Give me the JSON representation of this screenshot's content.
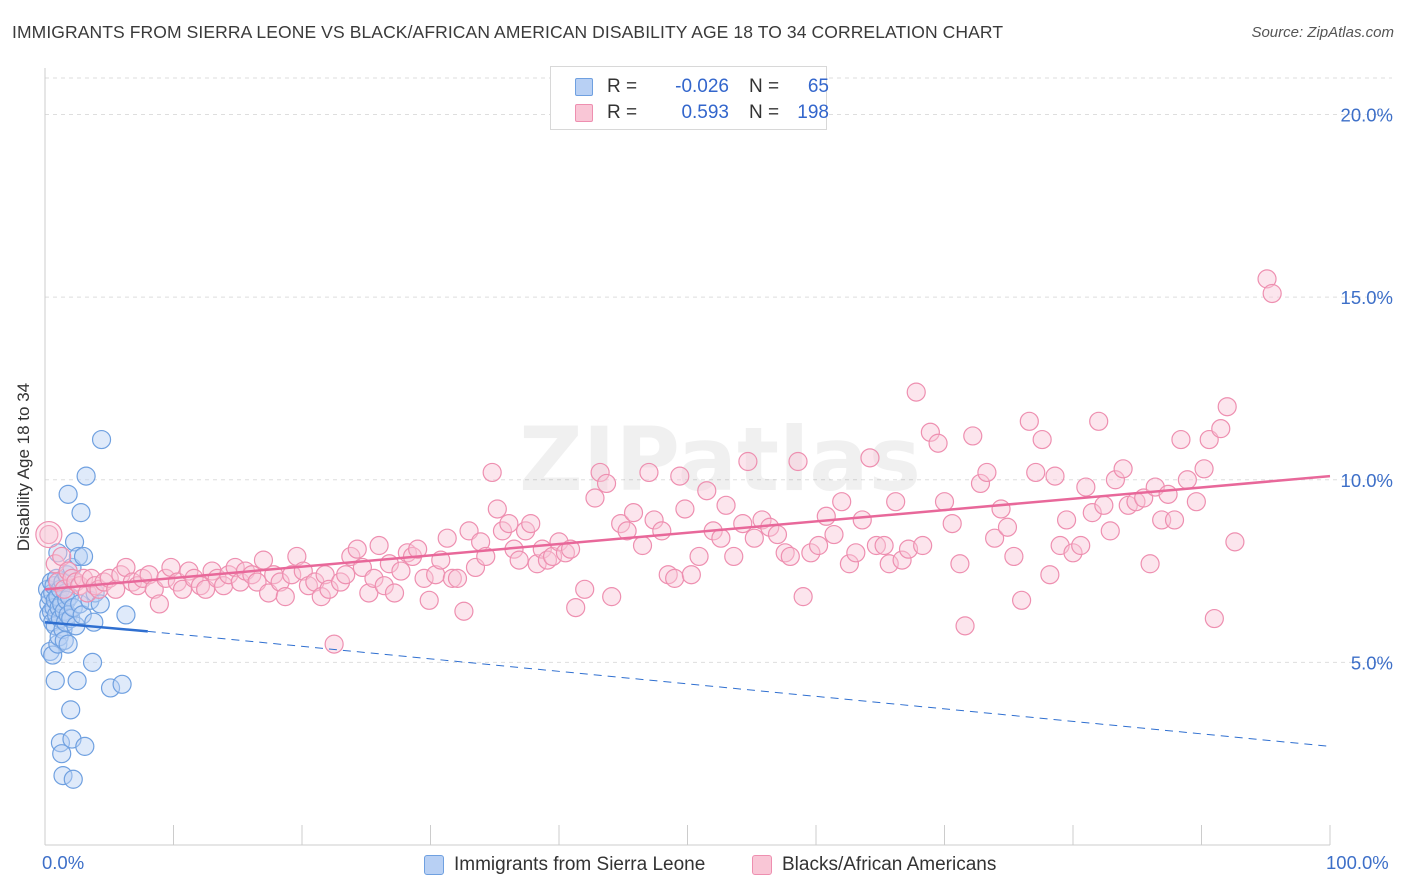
{
  "title": "IMMIGRANTS FROM SIERRA LEONE VS BLACK/AFRICAN AMERICAN DISABILITY AGE 18 TO 34 CORRELATION CHART",
  "source": "Source: ZipAtlas.com",
  "watermark": "ZIPatlas",
  "legend": {
    "rows": [
      {
        "r_label": "R =",
        "r_value": "-0.026",
        "n_label": "N =",
        "n_value": "65"
      },
      {
        "r_label": "R =",
        "r_value": "0.593",
        "n_label": "N =",
        "n_value": "198"
      }
    ]
  },
  "bottom_legend": [
    "Immigrants from Sierra Leone",
    "Blacks/African Americans"
  ],
  "chart_data": {
    "type": "scatter",
    "ylabel": "Disability Age 18 to 34",
    "xlim": [
      0,
      100
    ],
    "ylim": [
      0,
      21
    ],
    "x_tick_labels": [
      "0.0%",
      "100.0%"
    ],
    "y_ticks": [
      5,
      10,
      15,
      20
    ],
    "y_tick_labels": [
      "5.0%",
      "10.0%",
      "15.0%",
      "20.0%"
    ],
    "grid": "horizontal dashed",
    "colors": {
      "blue": "#6fa0e0",
      "pink": "#ee8fb0",
      "blue_line": "#2f6fd0",
      "pink_line": "#e8689a",
      "tick_text": "#3d6fc8"
    },
    "series": [
      {
        "name": "Immigrants from Sierra Leone",
        "color": "#6fa0e0",
        "trend": {
          "x": [
            0,
            8
          ],
          "y": [
            6.1,
            5.85
          ],
          "dashed_x": [
            8,
            100
          ],
          "dashed_y": [
            5.85,
            2.7
          ]
        },
        "points": [
          [
            0.2,
            7.0
          ],
          [
            0.3,
            6.6
          ],
          [
            0.3,
            6.3
          ],
          [
            0.4,
            6.8
          ],
          [
            0.4,
            5.3
          ],
          [
            0.5,
            7.2
          ],
          [
            0.5,
            6.4
          ],
          [
            0.6,
            6.9
          ],
          [
            0.6,
            6.1
          ],
          [
            0.6,
            5.2
          ],
          [
            0.7,
            7.1
          ],
          [
            0.7,
            6.5
          ],
          [
            0.8,
            6.7
          ],
          [
            0.8,
            6.0
          ],
          [
            0.8,
            4.5
          ],
          [
            0.9,
            7.3
          ],
          [
            0.9,
            6.3
          ],
          [
            1.0,
            6.8
          ],
          [
            1.0,
            5.5
          ],
          [
            1.0,
            8.0
          ],
          [
            1.1,
            6.5
          ],
          [
            1.1,
            5.7
          ],
          [
            1.2,
            7.0
          ],
          [
            1.2,
            6.2
          ],
          [
            1.2,
            2.8
          ],
          [
            1.3,
            6.6
          ],
          [
            1.3,
            2.5
          ],
          [
            1.4,
            7.2
          ],
          [
            1.4,
            5.9
          ],
          [
            1.4,
            1.9
          ],
          [
            1.5,
            6.4
          ],
          [
            1.5,
            5.6
          ],
          [
            1.6,
            6.9
          ],
          [
            1.6,
            6.1
          ],
          [
            1.7,
            7.4
          ],
          [
            1.7,
            6.7
          ],
          [
            1.8,
            6.3
          ],
          [
            1.8,
            5.5
          ],
          [
            1.8,
            9.6
          ],
          [
            1.9,
            6.8
          ],
          [
            2.0,
            6.2
          ],
          [
            2.0,
            3.7
          ],
          [
            2.1,
            7.6
          ],
          [
            2.1,
            2.9
          ],
          [
            2.2,
            6.5
          ],
          [
            2.2,
            1.8
          ],
          [
            2.3,
            8.3
          ],
          [
            2.4,
            6.0
          ],
          [
            2.5,
            4.5
          ],
          [
            2.6,
            7.9
          ],
          [
            2.7,
            6.6
          ],
          [
            2.8,
            9.1
          ],
          [
            2.9,
            6.3
          ],
          [
            3.0,
            7.9
          ],
          [
            3.1,
            2.7
          ],
          [
            3.2,
            10.1
          ],
          [
            3.5,
            6.7
          ],
          [
            3.7,
            5.0
          ],
          [
            3.8,
            6.1
          ],
          [
            3.9,
            6.9
          ],
          [
            4.3,
            6.6
          ],
          [
            4.4,
            11.1
          ],
          [
            5.1,
            4.3
          ],
          [
            6.0,
            4.4
          ],
          [
            6.3,
            6.3
          ]
        ]
      },
      {
        "name": "Blacks/African Americans",
        "color": "#ee8fb0",
        "trend": {
          "x": [
            0,
            100
          ],
          "y": [
            7.0,
            10.1
          ]
        },
        "points": [
          [
            0.3,
            8.5
          ],
          [
            0.8,
            7.7
          ],
          [
            1.0,
            7.2
          ],
          [
            1.3,
            7.9
          ],
          [
            1.5,
            7.0
          ],
          [
            1.8,
            7.5
          ],
          [
            2.1,
            7.3
          ],
          [
            2.4,
            7.2
          ],
          [
            2.7,
            7.1
          ],
          [
            3.0,
            7.3
          ],
          [
            3.3,
            6.9
          ],
          [
            3.6,
            7.3
          ],
          [
            3.9,
            7.1
          ],
          [
            4.2,
            7.0
          ],
          [
            4.6,
            7.2
          ],
          [
            5.0,
            7.3
          ],
          [
            5.5,
            7.0
          ],
          [
            5.9,
            7.4
          ],
          [
            6.3,
            7.6
          ],
          [
            6.8,
            7.2
          ],
          [
            7.2,
            7.1
          ],
          [
            7.6,
            7.3
          ],
          [
            8.1,
            7.4
          ],
          [
            8.5,
            7.0
          ],
          [
            8.9,
            6.6
          ],
          [
            9.4,
            7.3
          ],
          [
            9.8,
            7.6
          ],
          [
            10.3,
            7.2
          ],
          [
            10.7,
            7.0
          ],
          [
            11.2,
            7.5
          ],
          [
            11.6,
            7.3
          ],
          [
            12.1,
            7.1
          ],
          [
            12.5,
            7.0
          ],
          [
            13.0,
            7.5
          ],
          [
            13.4,
            7.3
          ],
          [
            13.9,
            7.1
          ],
          [
            14.3,
            7.4
          ],
          [
            14.8,
            7.6
          ],
          [
            15.2,
            7.2
          ],
          [
            15.6,
            7.5
          ],
          [
            16.1,
            7.4
          ],
          [
            16.5,
            7.2
          ],
          [
            17.0,
            7.8
          ],
          [
            17.4,
            6.9
          ],
          [
            17.8,
            7.4
          ],
          [
            18.3,
            7.2
          ],
          [
            18.7,
            6.8
          ],
          [
            19.2,
            7.4
          ],
          [
            19.6,
            7.9
          ],
          [
            20.1,
            7.5
          ],
          [
            20.5,
            7.1
          ],
          [
            21.0,
            7.2
          ],
          [
            21.5,
            6.8
          ],
          [
            21.8,
            7.4
          ],
          [
            22.1,
            7.0
          ],
          [
            22.5,
            5.5
          ],
          [
            23.0,
            7.2
          ],
          [
            23.4,
            7.4
          ],
          [
            23.8,
            7.9
          ],
          [
            24.3,
            8.1
          ],
          [
            24.7,
            7.6
          ],
          [
            25.2,
            6.9
          ],
          [
            25.6,
            7.3
          ],
          [
            26.0,
            8.2
          ],
          [
            26.4,
            7.1
          ],
          [
            26.8,
            7.7
          ],
          [
            27.2,
            6.9
          ],
          [
            27.7,
            7.5
          ],
          [
            28.2,
            8.0
          ],
          [
            28.6,
            7.9
          ],
          [
            29.0,
            8.1
          ],
          [
            29.5,
            7.3
          ],
          [
            29.9,
            6.7
          ],
          [
            30.4,
            7.4
          ],
          [
            30.8,
            7.8
          ],
          [
            31.3,
            8.4
          ],
          [
            31.7,
            7.3
          ],
          [
            32.1,
            7.3
          ],
          [
            32.6,
            6.4
          ],
          [
            33.0,
            8.6
          ],
          [
            33.5,
            7.6
          ],
          [
            33.9,
            8.3
          ],
          [
            34.3,
            7.9
          ],
          [
            34.8,
            10.2
          ],
          [
            35.2,
            9.2
          ],
          [
            35.6,
            8.6
          ],
          [
            36.1,
            8.8
          ],
          [
            36.5,
            8.1
          ],
          [
            36.9,
            7.8
          ],
          [
            37.4,
            8.6
          ],
          [
            37.8,
            8.8
          ],
          [
            38.3,
            7.7
          ],
          [
            38.7,
            8.1
          ],
          [
            39.1,
            7.8
          ],
          [
            39.5,
            7.9
          ],
          [
            40.0,
            8.3
          ],
          [
            40.5,
            8.0
          ],
          [
            40.9,
            8.1
          ],
          [
            41.3,
            6.5
          ],
          [
            42.0,
            7.0
          ],
          [
            42.8,
            9.5
          ],
          [
            43.2,
            10.2
          ],
          [
            43.7,
            9.9
          ],
          [
            44.1,
            6.8
          ],
          [
            44.8,
            8.8
          ],
          [
            45.3,
            8.6
          ],
          [
            45.8,
            9.1
          ],
          [
            46.5,
            8.2
          ],
          [
            47.0,
            10.2
          ],
          [
            47.4,
            8.9
          ],
          [
            48.0,
            8.6
          ],
          [
            48.5,
            7.4
          ],
          [
            49.0,
            7.3
          ],
          [
            49.4,
            10.1
          ],
          [
            49.8,
            9.2
          ],
          [
            50.3,
            7.4
          ],
          [
            50.9,
            7.9
          ],
          [
            51.5,
            9.7
          ],
          [
            52.0,
            8.6
          ],
          [
            52.6,
            8.4
          ],
          [
            53.0,
            9.3
          ],
          [
            53.6,
            7.9
          ],
          [
            54.3,
            8.8
          ],
          [
            54.7,
            10.5
          ],
          [
            55.2,
            8.4
          ],
          [
            55.8,
            8.9
          ],
          [
            56.4,
            8.7
          ],
          [
            57.0,
            8.5
          ],
          [
            57.6,
            8.0
          ],
          [
            58.0,
            7.9
          ],
          [
            58.6,
            10.5
          ],
          [
            59.0,
            6.8
          ],
          [
            59.6,
            8.0
          ],
          [
            60.2,
            8.2
          ],
          [
            60.8,
            9.0
          ],
          [
            61.4,
            8.5
          ],
          [
            62.0,
            9.4
          ],
          [
            62.6,
            7.7
          ],
          [
            63.1,
            8.0
          ],
          [
            63.6,
            8.9
          ],
          [
            64.2,
            10.6
          ],
          [
            64.7,
            8.2
          ],
          [
            65.3,
            8.2
          ],
          [
            65.7,
            7.7
          ],
          [
            66.2,
            9.4
          ],
          [
            66.7,
            7.8
          ],
          [
            67.2,
            8.1
          ],
          [
            67.8,
            12.4
          ],
          [
            68.3,
            8.2
          ],
          [
            68.9,
            11.3
          ],
          [
            69.5,
            11.0
          ],
          [
            70.0,
            9.4
          ],
          [
            70.6,
            8.8
          ],
          [
            71.2,
            7.7
          ],
          [
            71.6,
            6.0
          ],
          [
            72.2,
            11.2
          ],
          [
            72.8,
            9.9
          ],
          [
            73.3,
            10.2
          ],
          [
            73.9,
            8.4
          ],
          [
            74.4,
            9.2
          ],
          [
            74.9,
            8.7
          ],
          [
            75.4,
            7.9
          ],
          [
            76.0,
            6.7
          ],
          [
            76.6,
            11.6
          ],
          [
            77.1,
            10.2
          ],
          [
            77.6,
            11.1
          ],
          [
            78.2,
            7.4
          ],
          [
            78.6,
            10.1
          ],
          [
            79.0,
            8.2
          ],
          [
            79.5,
            8.9
          ],
          [
            80.0,
            8.0
          ],
          [
            80.6,
            8.2
          ],
          [
            81.0,
            9.8
          ],
          [
            81.5,
            9.1
          ],
          [
            82.0,
            11.6
          ],
          [
            82.4,
            9.3
          ],
          [
            82.9,
            8.6
          ],
          [
            83.3,
            10.0
          ],
          [
            83.9,
            10.3
          ],
          [
            84.3,
            9.3
          ],
          [
            84.9,
            9.4
          ],
          [
            85.5,
            9.5
          ],
          [
            86.0,
            7.7
          ],
          [
            86.4,
            9.8
          ],
          [
            86.9,
            8.9
          ],
          [
            87.4,
            9.6
          ],
          [
            87.9,
            8.9
          ],
          [
            88.4,
            11.1
          ],
          [
            88.9,
            10.0
          ],
          [
            89.6,
            9.4
          ],
          [
            90.2,
            10.3
          ],
          [
            90.6,
            11.1
          ],
          [
            91.0,
            6.2
          ],
          [
            91.5,
            11.4
          ],
          [
            92.0,
            12.0
          ],
          [
            92.6,
            8.3
          ],
          [
            95.1,
            15.5
          ],
          [
            95.5,
            15.1
          ]
        ]
      }
    ]
  }
}
